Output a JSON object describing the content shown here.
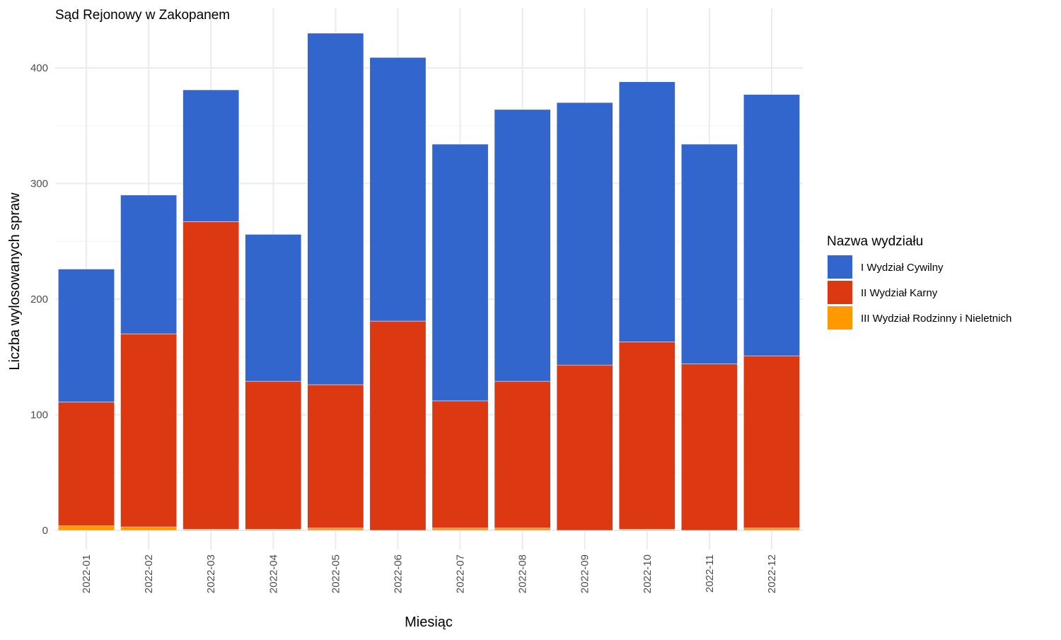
{
  "chart_data": {
    "type": "bar",
    "stacked": true,
    "title": "Sąd Rejonowy w Zakopanem",
    "xlabel": "Miesiąc",
    "ylabel": "Liczba wylosowanych spraw",
    "ylim": [
      0,
      440
    ],
    "yticks": [
      0,
      100,
      200,
      300,
      400
    ],
    "grid": true,
    "legend_title": "Nazwa wydziału",
    "legend_position": "right",
    "categories": [
      "2022-01",
      "2022-02",
      "2022-03",
      "2022-04",
      "2022-05",
      "2022-06",
      "2022-07",
      "2022-08",
      "2022-09",
      "2022-10",
      "2022-11",
      "2022-12"
    ],
    "series": [
      {
        "name": "I Wydział Cywilny",
        "color": "#3366cc",
        "values": [
          115,
          120,
          114,
          127,
          304,
          228,
          222,
          235,
          227,
          225,
          190,
          226
        ]
      },
      {
        "name": "II Wydział Karny",
        "color": "#dc3912",
        "values": [
          107,
          167,
          266,
          128,
          124,
          181,
          110,
          127,
          143,
          162,
          144,
          149
        ]
      },
      {
        "name": "III Wydział Rodzinny i Nieletnich",
        "color": "#ff9900",
        "values": [
          4,
          3,
          1,
          1,
          2,
          0,
          2,
          2,
          0,
          1,
          0,
          2
        ]
      }
    ]
  }
}
